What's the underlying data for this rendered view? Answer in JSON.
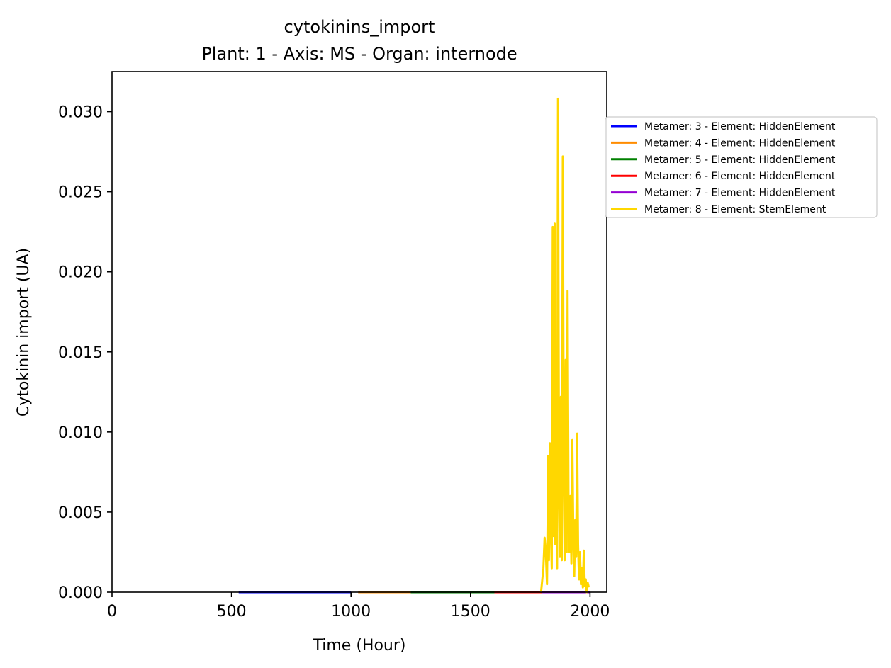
{
  "chart_data": {
    "type": "line",
    "title": "cytokinins_import",
    "subtitle": "Plant: 1 - Axis: MS - Organ: internode",
    "xlabel": "Time (Hour)",
    "ylabel": "Cytokinin import (UA)",
    "xlim": [
      0,
      2070
    ],
    "ylim": [
      0,
      0.0325
    ],
    "xticks": [
      0,
      500,
      1000,
      1500,
      2000
    ],
    "xtick_labels": [
      "0",
      "500",
      "1000",
      "1500",
      "2000"
    ],
    "yticks": [
      0,
      0.005,
      0.01,
      0.015,
      0.02,
      0.025,
      0.03
    ],
    "ytick_labels": [
      "0.000",
      "0.005",
      "0.010",
      "0.015",
      "0.020",
      "0.025",
      "0.030"
    ],
    "grid": false,
    "legend_position": "outside right",
    "series": [
      {
        "name": "Metamer: 3 - Element: HiddenElement",
        "color": "#0000ff",
        "x": [
          530,
          1000
        ],
        "y": [
          0.0,
          0.0
        ]
      },
      {
        "name": "Metamer: 4 - Element: HiddenElement",
        "color": "#ff8c00",
        "x": [
          1030,
          1250
        ],
        "y": [
          0.0,
          0.0
        ]
      },
      {
        "name": "Metamer: 5 - Element: HiddenElement",
        "color": "#008000",
        "x": [
          1250,
          1600
        ],
        "y": [
          0.0,
          0.0
        ]
      },
      {
        "name": "Metamer: 6 - Element: HiddenElement",
        "color": "#ff0000",
        "x": [
          1600,
          1800
        ],
        "y": [
          0.0,
          0.0
        ]
      },
      {
        "name": "Metamer: 7 - Element: HiddenElement",
        "color": "#9400d3",
        "x": [
          1800,
          2000
        ],
        "y": [
          0.0,
          0.0
        ]
      },
      {
        "name": "Metamer: 8 - Element: StemElement",
        "color": "#ffd700",
        "x": [
          1795,
          1805,
          1810,
          1815,
          1820,
          1825,
          1828,
          1832,
          1836,
          1840,
          1844,
          1848,
          1852,
          1855,
          1858,
          1862,
          1866,
          1870,
          1874,
          1878,
          1882,
          1886,
          1890,
          1894,
          1898,
          1902,
          1906,
          1910,
          1914,
          1918,
          1922,
          1926,
          1930,
          1934,
          1938,
          1942,
          1946,
          1950,
          1954,
          1958,
          1962,
          1966,
          1970,
          1974,
          1978,
          1982,
          1986,
          1990,
          1995
        ],
        "y": [
          0.0,
          0.0015,
          0.0034,
          0.0025,
          0.0005,
          0.0085,
          0.002,
          0.0093,
          0.004,
          0.0015,
          0.0228,
          0.0035,
          0.023,
          0.003,
          0.0085,
          0.0015,
          0.0308,
          0.007,
          0.0022,
          0.0122,
          0.002,
          0.0272,
          0.0085,
          0.002,
          0.0145,
          0.0025,
          0.0188,
          0.0055,
          0.0025,
          0.006,
          0.0018,
          0.0095,
          0.0035,
          0.001,
          0.0045,
          0.0022,
          0.0099,
          0.003,
          0.0008,
          0.0025,
          0.0005,
          0.0015,
          0.0003,
          0.0026,
          0.0004,
          0.0008,
          0.0,
          0.0006,
          0.0003
        ]
      }
    ]
  }
}
